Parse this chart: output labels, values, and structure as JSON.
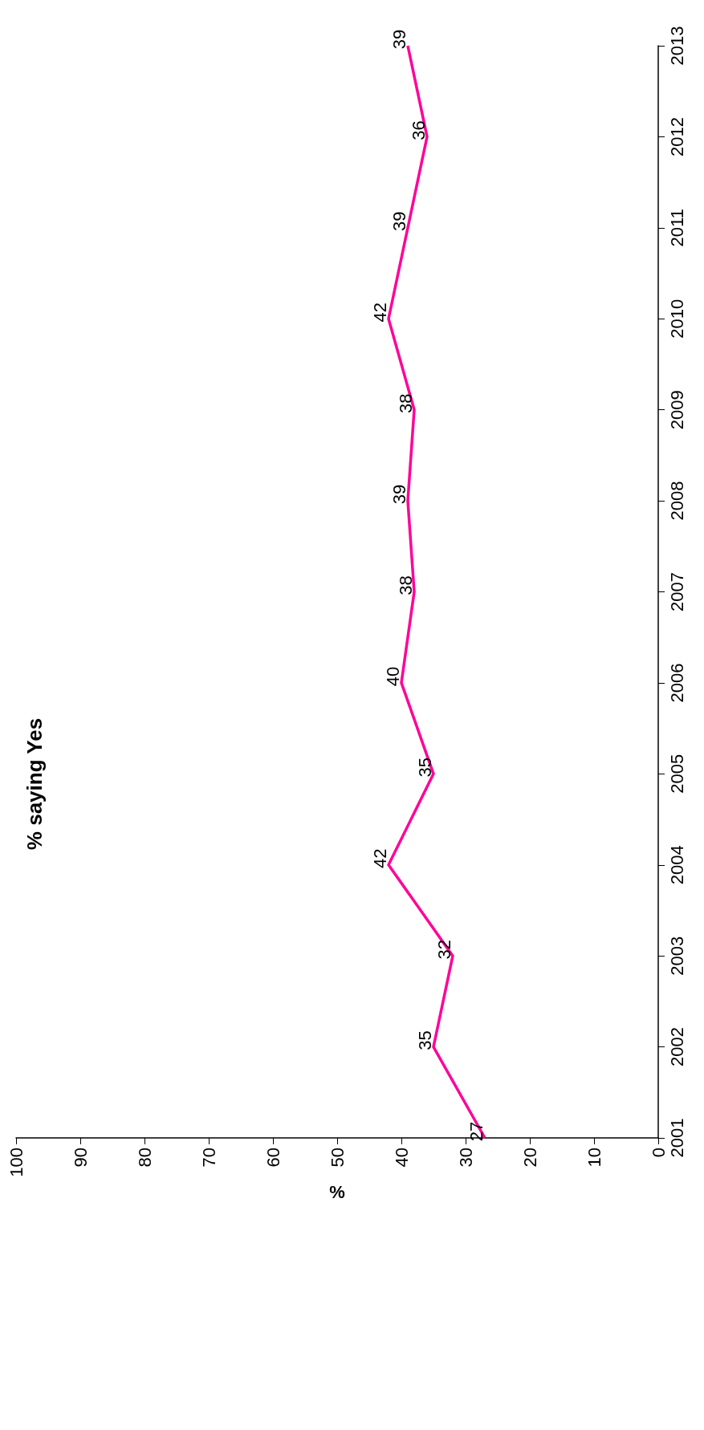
{
  "chart_data": {
    "type": "line",
    "orientation": "horizontal",
    "title": "% saying Yes",
    "xlabel": "%",
    "categories": [
      "2013",
      "2012",
      "2011",
      "2010",
      "2009",
      "2008",
      "2007",
      "2006",
      "2005",
      "2004",
      "2003",
      "2002",
      "2001"
    ],
    "series": [
      {
        "color": "#ff0099",
        "values": [
          39,
          36,
          39,
          42,
          38,
          39,
          38,
          40,
          35,
          42,
          32,
          35,
          27
        ]
      }
    ],
    "xlim": [
      100,
      0
    ],
    "xticks": [
      100,
      90,
      80,
      70,
      60,
      50,
      40,
      30,
      20,
      10,
      0
    ],
    "grid": false,
    "marker": "none",
    "data_labels": true
  }
}
